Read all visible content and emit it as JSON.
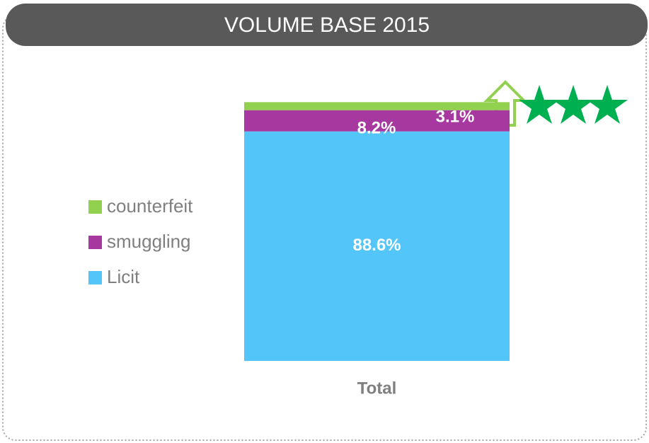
{
  "chart_data": {
    "type": "stacked_bar",
    "title": "VOLUME BASE 2015",
    "categories": [
      "Total"
    ],
    "series": [
      {
        "name": "Licit",
        "color": "#53c5f8",
        "values": [
          88.6
        ],
        "value_labels": [
          "88.6%"
        ]
      },
      {
        "name": "smuggling",
        "color": "#a6389f",
        "values": [
          8.2
        ],
        "value_labels": [
          "8.2%"
        ]
      },
      {
        "name": "counterfeit",
        "color": "#92d050",
        "values": [
          3.1
        ],
        "value_labels": [
          "3.1%"
        ]
      }
    ],
    "ylim": [
      0,
      100
    ]
  }
}
